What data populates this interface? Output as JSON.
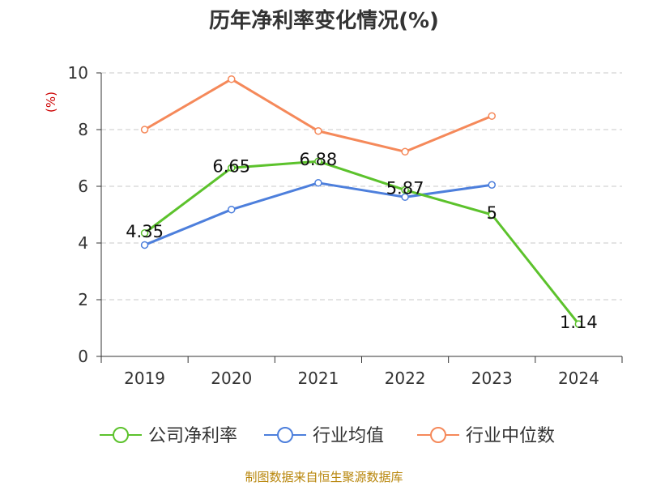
{
  "chart_data": {
    "type": "line",
    "title": "历年净利率变化情况(%)",
    "ylabel": "(%)",
    "xlabel": "",
    "categories": [
      "2019",
      "2020",
      "2021",
      "2022",
      "2023",
      "2024"
    ],
    "yticks": [
      "0",
      "2",
      "4",
      "6",
      "8",
      "10"
    ],
    "ylim": [
      0,
      10
    ],
    "grid": "horizontal-dashed",
    "legend_position": "bottom",
    "series": [
      {
        "name": "公司净利率",
        "color": "#5cc22c",
        "values": [
          4.35,
          6.65,
          6.88,
          5.87,
          5.0,
          1.14
        ],
        "labels": [
          "4.35",
          "6.65",
          "6.88",
          "5.87",
          "5",
          "1.14"
        ]
      },
      {
        "name": "行业均值",
        "color": "#4d7fdc",
        "values": [
          3.93,
          5.18,
          6.12,
          5.62,
          6.05,
          null
        ]
      },
      {
        "name": "行业中位数",
        "color": "#f5895a",
        "values": [
          8.0,
          9.78,
          7.95,
          7.22,
          8.48,
          null
        ]
      }
    ]
  },
  "source": "制图数据来自恒生聚源数据库"
}
